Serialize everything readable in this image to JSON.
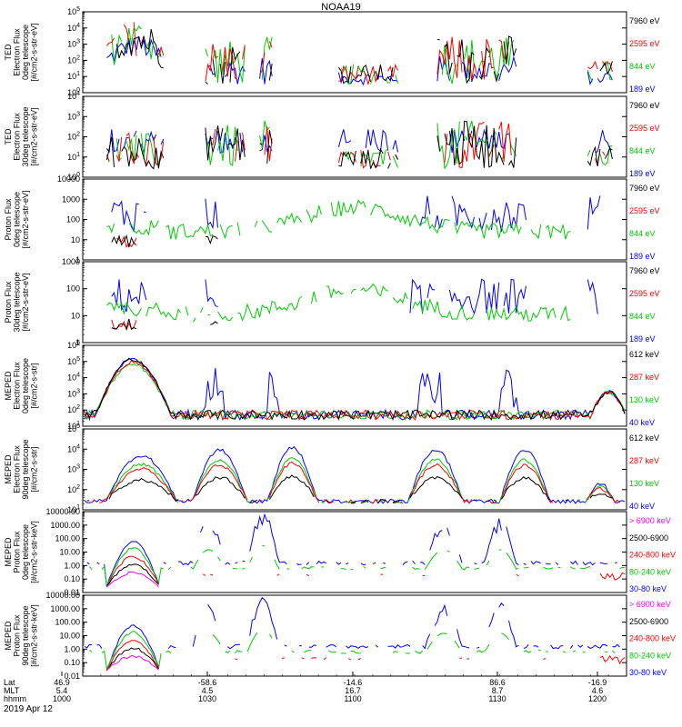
{
  "title": "NOAA19",
  "date": "2019 Apr 12",
  "chart_data": {
    "type": "line",
    "title": "NOAA19",
    "x_axis": {
      "row_labels": [
        "Lat",
        "MLT",
        "hhmm"
      ],
      "ticks": [
        {
          "lat": "46.9",
          "mlt": "5.4",
          "hhmm": "1000"
        },
        {
          "lat": "-58.6",
          "mlt": "4.5",
          "hhmm": "1030"
        },
        {
          "lat": "-14.6",
          "mlt": "16.7",
          "hhmm": "1100"
        },
        {
          "lat": "86.6",
          "mlt": "8.7",
          "hhmm": "1130"
        },
        {
          "lat": "-16.9",
          "mlt": "4.6",
          "hhmm": "1200"
        }
      ]
    },
    "panels": [
      {
        "ylabel": [
          "TED",
          "Electron Flux",
          "0deg telescope",
          "[#/cm2-s-str-eV]"
        ],
        "scale": "log",
        "ticks": [
          "10^0",
          "10^1",
          "10^2",
          "10^3",
          "10^4",
          "10^5"
        ],
        "legend": [
          {
            "label": "7960 eV",
            "color": "#000000"
          },
          {
            "label": "2595 eV",
            "color": "#ff0000"
          },
          {
            "label": "844 eV",
            "color": "#00cc00"
          },
          {
            "label": "189 eV",
            "color": "#0000ff"
          }
        ]
      },
      {
        "ylabel": [
          "TED",
          "Electron Flux",
          "30deg telescope",
          "[#/cm2-s-str-eV]"
        ],
        "scale": "log",
        "ticks": [
          "10^0",
          "10^1",
          "10^2",
          "10^3",
          "10^4"
        ],
        "legend": [
          {
            "label": "7960 eV",
            "color": "#000000"
          },
          {
            "label": "2595 eV",
            "color": "#ff0000"
          },
          {
            "label": "844 eV",
            "color": "#00cc00"
          },
          {
            "label": "189 eV",
            "color": "#0000ff"
          }
        ]
      },
      {
        "ylabel": [
          "Proton Flux",
          "0deg telescope",
          "[#/cm2-s-str-eV]"
        ],
        "scale": "log",
        "ticks": [
          "1",
          "10",
          "100",
          "1000",
          "10000"
        ],
        "legend": [
          {
            "label": "7960 eV",
            "color": "#000000"
          },
          {
            "label": "2595 eV",
            "color": "#ff0000"
          },
          {
            "label": "844 eV",
            "color": "#00cc00"
          },
          {
            "label": "189 eV",
            "color": "#0000ff"
          }
        ]
      },
      {
        "ylabel": [
          "Proton Flux",
          "30deg telescope",
          "[#/cm2-s-str-eV]"
        ],
        "scale": "log",
        "ticks": [
          "1",
          "10",
          "100",
          "1000"
        ],
        "legend": [
          {
            "label": "7960 eV",
            "color": "#000000"
          },
          {
            "label": "2595 eV",
            "color": "#ff0000"
          },
          {
            "label": "844 eV",
            "color": "#00cc00"
          },
          {
            "label": "189 eV",
            "color": "#0000ff"
          }
        ]
      },
      {
        "ylabel": [
          "MEPED",
          "Electron Flux",
          "0deg telescope",
          "[#/cm2-s-str]"
        ],
        "scale": "log",
        "ticks": [
          "10^1",
          "10^2",
          "10^3",
          "10^4",
          "10^5",
          "10^6"
        ],
        "legend": [
          {
            "label": "612 keV",
            "color": "#000000"
          },
          {
            "label": "287 keV",
            "color": "#ff0000"
          },
          {
            "label": "130 keV",
            "color": "#00cc00"
          },
          {
            "label": "40 keV",
            "color": "#0000ff"
          }
        ]
      },
      {
        "ylabel": [
          "MEPED",
          "Electron Flux",
          "90deg telescope",
          "[#/cm2-s-str]"
        ],
        "scale": "log",
        "ticks": [
          "10^1",
          "10^2",
          "10^3",
          "10^4",
          "10^5"
        ],
        "legend": [
          {
            "label": "612 keV",
            "color": "#000000"
          },
          {
            "label": "287 keV",
            "color": "#ff0000"
          },
          {
            "label": "130 keV",
            "color": "#00cc00"
          },
          {
            "label": "40 keV",
            "color": "#0000ff"
          }
        ]
      },
      {
        "ylabel": [
          "MEPED",
          "Proton Flux",
          "0deg telescope",
          "[#/cm2-s-str-keV]"
        ],
        "scale": "log",
        "ticks": [
          "0.01",
          "0.10",
          "1.00",
          "10.00",
          "100.00",
          "1000.00",
          "10000.00"
        ],
        "legend": [
          {
            "label": "> 6900 keV",
            "color": "#ff00ff"
          },
          {
            "label": "2500-6900",
            "color": "#000000"
          },
          {
            "label": "240-800 keV",
            "color": "#ff0000"
          },
          {
            "label": "80-240 keV",
            "color": "#00cc00"
          },
          {
            "label": "30-80 keV",
            "color": "#0000ff"
          }
        ]
      },
      {
        "ylabel": [
          "MEPED",
          "Proton Flux",
          "90deg telescope",
          "[#/cm2-s-str-keV]"
        ],
        "scale": "log",
        "ticks": [
          "0.01",
          "0.10",
          "1.00",
          "10.00",
          "100.00",
          "1000.00",
          "10000.00"
        ],
        "legend": [
          {
            "label": "> 6900 keV",
            "color": "#ff00ff"
          },
          {
            "label": "2500-6900",
            "color": "#000000"
          },
          {
            "label": "240-800 keV",
            "color": "#ff0000"
          },
          {
            "label": "80-240 keV",
            "color": "#00cc00"
          },
          {
            "label": "30-80 keV",
            "color": "#0000ff"
          }
        ]
      }
    ]
  }
}
